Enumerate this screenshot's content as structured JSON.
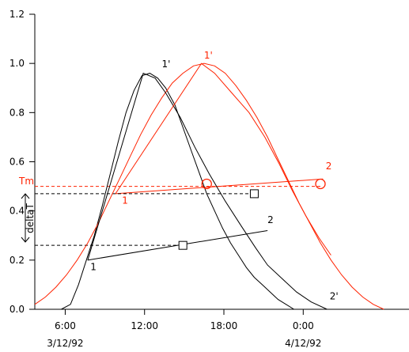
{
  "chart_data": {
    "type": "line",
    "title": "",
    "xlabel": "",
    "ylabel": "",
    "xlim": [
      3.7,
      32.0
    ],
    "ylim": [
      0.0,
      1.2
    ],
    "y_ticks": [
      {
        "value": 0.0,
        "label": "0.0"
      },
      {
        "value": 0.2,
        "label": "0.2"
      },
      {
        "value": 0.4,
        "label": "0.4"
      },
      {
        "value": 0.6,
        "label": "0.6"
      },
      {
        "value": 0.8,
        "label": "0.8"
      },
      {
        "value": 1.0,
        "label": "1.0"
      },
      {
        "value": 1.2,
        "label": "1.2"
      }
    ],
    "x_ticks": [
      {
        "value": 6,
        "label": "6:00",
        "sublabel": "3/12/92"
      },
      {
        "value": 12,
        "label": "12:00",
        "sublabel": ""
      },
      {
        "value": 18,
        "label": "18:00",
        "sublabel": ""
      },
      {
        "value": 24,
        "label": "0:00",
        "sublabel": "4/12/92"
      }
    ],
    "grid": false,
    "series": [
      {
        "color": "#000000",
        "x": [
          5.7,
          6.4,
          7.0,
          7.6,
          8.2,
          8.8,
          9.4,
          10.0,
          10.6,
          11.2,
          11.8,
          12.4,
          13.0,
          13.6,
          14.3,
          14.9,
          15.5,
          16.1,
          16.7,
          17.3,
          17.9,
          18.5,
          19.1,
          19.7,
          20.3,
          20.9,
          21.5,
          22.1,
          22.7,
          23.3,
          23.9,
          24.5,
          25.1
        ],
        "y": [
          0.0,
          0.02,
          0.1,
          0.2,
          0.3,
          0.42,
          0.55,
          0.68,
          0.8,
          0.89,
          0.95,
          0.96,
          0.94,
          0.9,
          0.83,
          0.74,
          0.65,
          0.56,
          0.47,
          0.4,
          0.33,
          0.27,
          0.22,
          0.17,
          0.13,
          0.1,
          0.07,
          0.04,
          0.02,
          0.0,
          0.0,
          0.0,
          0.0
        ]
      },
      {
        "color": "#ff2200",
        "x": [
          3.7,
          4.5,
          5.3,
          6.1,
          6.9,
          7.7,
          8.5,
          9.3,
          10.1,
          10.9,
          11.7,
          12.5,
          13.3,
          14.1,
          14.9,
          15.7,
          16.5,
          17.3,
          18.1,
          18.9,
          19.7,
          20.5,
          21.3,
          22.1,
          22.9,
          23.7,
          24.5,
          25.3,
          26.1,
          26.9,
          27.7,
          28.5,
          29.3,
          30.1
        ],
        "y": [
          0.02,
          0.05,
          0.09,
          0.14,
          0.2,
          0.27,
          0.35,
          0.44,
          0.53,
          0.62,
          0.71,
          0.79,
          0.86,
          0.92,
          0.96,
          0.99,
          1.0,
          0.99,
          0.96,
          0.91,
          0.85,
          0.78,
          0.7,
          0.61,
          0.52,
          0.43,
          0.35,
          0.27,
          0.2,
          0.14,
          0.09,
          0.05,
          0.02,
          0.0
        ]
      },
      {
        "color": "#000000",
        "x": [
          7.7,
          11.9,
          12.8,
          13.6,
          14.7,
          15.8,
          16.9,
          18.1,
          19.3,
          20.4,
          21.3,
          22.5,
          23.5,
          24.6,
          25.8
        ],
        "y": [
          0.2,
          0.96,
          0.94,
          0.88,
          0.78,
          0.66,
          0.55,
          0.44,
          0.34,
          0.25,
          0.18,
          0.12,
          0.07,
          0.03,
          0.0
        ]
      },
      {
        "color": "#ff2200",
        "x": [
          9.8,
          16.3,
          17.3,
          18.6,
          19.9,
          21.1,
          22.2,
          23.2,
          24.2,
          25.2,
          26.1
        ],
        "y": [
          0.47,
          1.0,
          0.96,
          0.88,
          0.8,
          0.7,
          0.59,
          0.48,
          0.38,
          0.29,
          0.22
        ]
      }
    ],
    "point_labels": [
      {
        "text": "1'",
        "x": 13.3,
        "y": 0.985,
        "color": "#000000"
      },
      {
        "text": "1'",
        "x": 16.5,
        "y": 1.02,
        "color": "#ff2200"
      },
      {
        "text": "1",
        "x": 7.9,
        "y": 0.16,
        "color": "#000000"
      },
      {
        "text": "2",
        "x": 21.3,
        "y": 0.35,
        "color": "#000000"
      },
      {
        "text": "1",
        "x": 10.3,
        "y": 0.43,
        "color": "#ff2200"
      },
      {
        "text": "2",
        "x": 25.7,
        "y": 0.57,
        "color": "#ff2200"
      },
      {
        "text": "2'",
        "x": 26.0,
        "y": 0.04,
        "color": "#000000"
      }
    ],
    "segments": [
      {
        "x": [
          7.7,
          21.3
        ],
        "y": [
          0.2,
          0.32
        ],
        "color": "#000000",
        "dash": false
      },
      {
        "x": [
          9.8,
          25.5
        ],
        "y": [
          0.47,
          0.53
        ],
        "color": "#ff2200",
        "dash": false
      },
      {
        "x": [
          3.7,
          25.3
        ],
        "y": [
          0.5,
          0.5
        ],
        "color": "#ff2200",
        "dash": true
      },
      {
        "x": [
          3.7,
          20.3
        ],
        "y": [
          0.47,
          0.47
        ],
        "color": "#000000",
        "dash": true
      },
      {
        "x": [
          3.7,
          15.0
        ],
        "y": [
          0.26,
          0.26
        ],
        "color": "#000000",
        "dash": true
      }
    ],
    "markers": [
      {
        "shape": "square",
        "x": 14.9,
        "y": 0.26,
        "color": "#000000"
      },
      {
        "shape": "square",
        "x": 20.3,
        "y": 0.47,
        "color": "#000000"
      },
      {
        "shape": "circle",
        "x": 16.7,
        "y": 0.51,
        "color": "#ff2200"
      },
      {
        "shape": "circle",
        "x": 25.3,
        "y": 0.51,
        "color": "#ff2200"
      }
    ],
    "annotations": [
      {
        "text": "Tm",
        "color": "#ff2200"
      },
      {
        "text": "deltaT",
        "color": "#000000",
        "y_range": [
          0.26,
          0.47
        ]
      }
    ]
  }
}
